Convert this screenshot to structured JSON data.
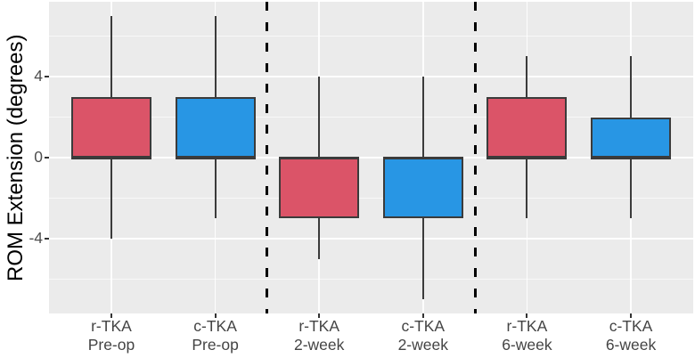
{
  "chart_data": {
    "type": "boxplot",
    "title": "",
    "xlabel": "",
    "ylabel": "ROM Extension (degrees)",
    "ylim": [
      -7.7,
      7.7
    ],
    "yticks_major": [
      4,
      0,
      -4
    ],
    "yticks_minor": [
      6,
      2,
      -2,
      -6
    ],
    "grid": true,
    "legend_position": "none",
    "categories": [
      "r-TKA Pre-op",
      "c-TKA Pre-op",
      "r-TKA 2-week",
      "c-TKA 2-week",
      "r-TKA 6-week",
      "c-TKA 6-week"
    ],
    "boxes": [
      {
        "label_line1": "r-TKA",
        "label_line2": "Pre-op",
        "series": "r-TKA",
        "fill": "#DB5468",
        "whisker_low": -4,
        "q1": 0,
        "median": 0,
        "q3": 3,
        "whisker_high": 7
      },
      {
        "label_line1": "c-TKA",
        "label_line2": "Pre-op",
        "series": "c-TKA",
        "fill": "#2896E4",
        "whisker_low": -3,
        "q1": 0,
        "median": 0,
        "q3": 3,
        "whisker_high": 7
      },
      {
        "label_line1": "r-TKA",
        "label_line2": "2-week",
        "series": "r-TKA",
        "fill": "#DB5468",
        "whisker_low": -5,
        "q1": -3,
        "median": 0,
        "q3": 0,
        "whisker_high": 4
      },
      {
        "label_line1": "c-TKA",
        "label_line2": "2-week",
        "series": "c-TKA",
        "fill": "#2896E4",
        "whisker_low": -7,
        "q1": -3,
        "median": 0,
        "q3": 0,
        "whisker_high": 4
      },
      {
        "label_line1": "r-TKA",
        "label_line2": "6-week",
        "series": "r-TKA",
        "fill": "#DB5468",
        "whisker_low": -3,
        "q1": 0,
        "median": 0,
        "q3": 3,
        "whisker_high": 5
      },
      {
        "label_line1": "c-TKA",
        "label_line2": "6-week",
        "series": "c-TKA",
        "fill": "#2896E4",
        "whisker_low": -3,
        "q1": 0,
        "median": 0,
        "q3": 2,
        "whisker_high": 5
      }
    ],
    "separator_lines_between_box_indices": [
      [
        1,
        2
      ],
      [
        3,
        4
      ]
    ],
    "colors": {
      "series_r_tka": "#DB5468",
      "series_c_tka": "#2896E4",
      "box_border": "#3B3B3B",
      "panel_background": "#EBEBEB",
      "gridline": "#FFFFFF",
      "separator": "#000000",
      "tick_label": "#4D4D4D",
      "axis_title": "#000000"
    }
  }
}
